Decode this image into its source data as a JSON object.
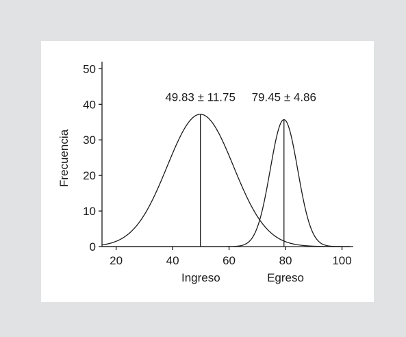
{
  "chart_data": {
    "type": "line",
    "ylabel": "Frecuencia",
    "xlim": [
      15,
      104
    ],
    "ylim": [
      0,
      52
    ],
    "x_ticks": [
      20,
      40,
      60,
      80,
      100
    ],
    "y_ticks": [
      0,
      10,
      20,
      30,
      40,
      50
    ],
    "x_category_labels": [
      {
        "x": 50,
        "label": "Ingreso"
      },
      {
        "x": 80,
        "label": "Egreso"
      }
    ],
    "series": [
      {
        "mean": 49.83,
        "sd": 11.75,
        "peak": 37.2,
        "color": "#1a1a1a"
      },
      {
        "mean": 79.45,
        "sd": 4.86,
        "peak": 35.7,
        "color": "#1a1a1a"
      }
    ],
    "annotations": [
      {
        "text": "49.83 ± 11.75",
        "x": 49.83,
        "y": 40
      },
      {
        "text": "79.45 ± 4.86",
        "x": 79.45,
        "y": 40
      }
    ]
  }
}
